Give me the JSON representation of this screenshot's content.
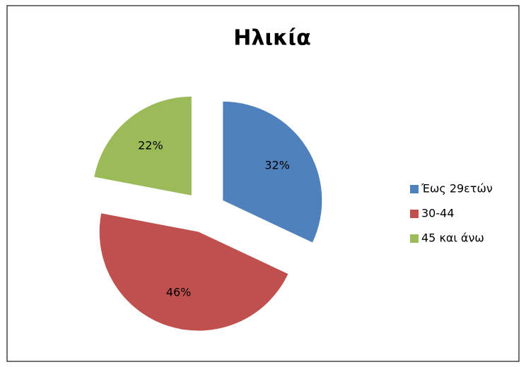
{
  "chart_data": {
    "type": "pie",
    "title": "Ηλικία",
    "categories": [
      "Έως 29ετών",
      "30-44",
      "45 και άνω"
    ],
    "values": [
      32,
      46,
      22
    ],
    "value_labels": [
      "32%",
      "46%",
      "22%"
    ],
    "colors": [
      "#4f81bd",
      "#c0504d",
      "#9bbb59"
    ],
    "exploded": true,
    "legend": "right"
  }
}
